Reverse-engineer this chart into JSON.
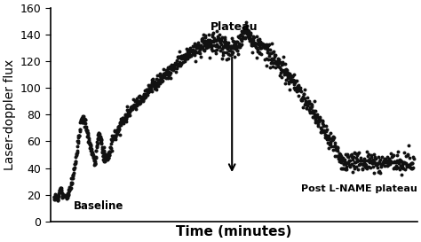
{
  "ylabel": "Laser-doppler flux",
  "xlabel": "Time (minutes)",
  "ylim": [
    0,
    160
  ],
  "yticks": [
    0,
    20,
    40,
    60,
    80,
    100,
    120,
    140,
    160
  ],
  "background_color": "#ffffff",
  "dot_color": "#111111",
  "dot_size": 8,
  "annotation_baseline": "Baseline",
  "annotation_plateau": "Plateau",
  "annotation_post": "Post L-NAME plateau",
  "label_fontsize": 10
}
